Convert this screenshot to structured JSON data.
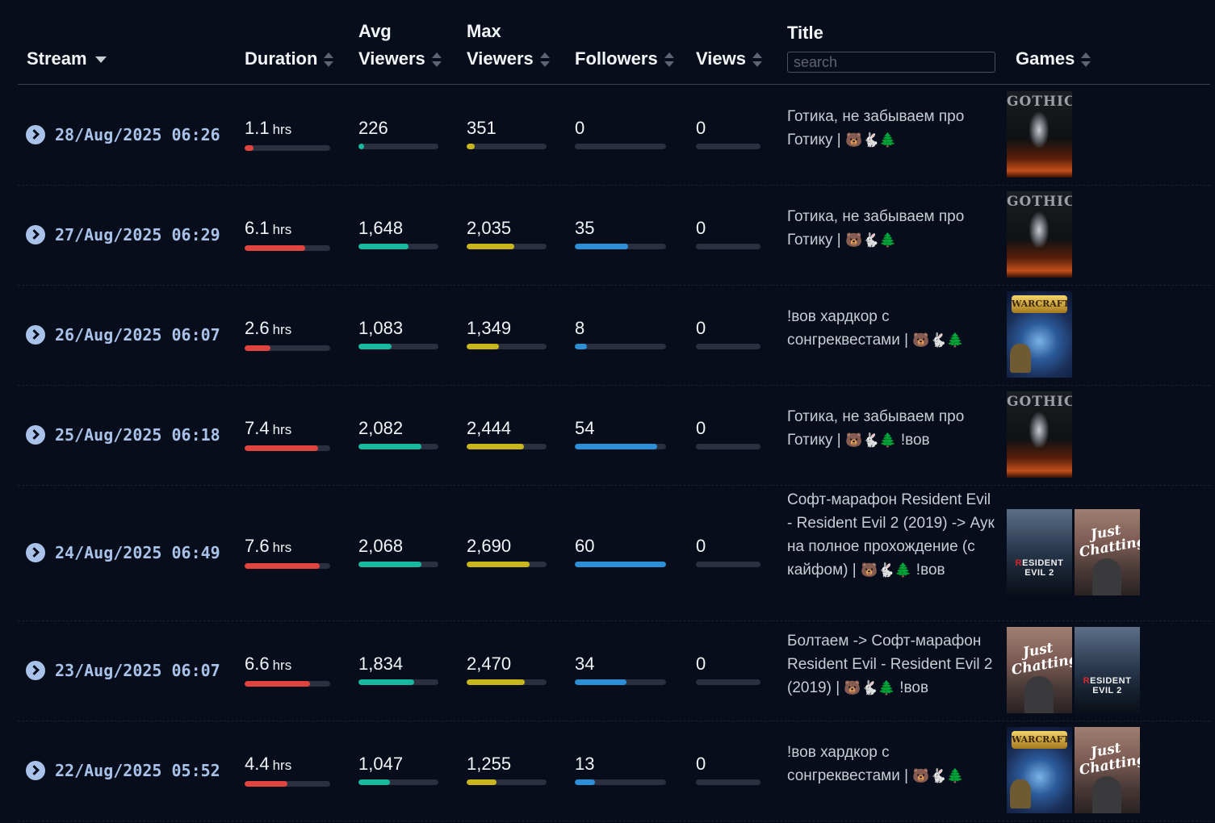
{
  "header": {
    "stream": "Stream",
    "duration": "Duration",
    "avg_viewers_1": "Avg",
    "avg_viewers_2": "Viewers",
    "max_viewers_1": "Max",
    "max_viewers_2": "Viewers",
    "followers": "Followers",
    "views": "Views",
    "title": "Title",
    "search_placeholder": "search",
    "games": "Games"
  },
  "unit_hrs": "hrs",
  "colors": {
    "duration": "#e0443e",
    "avg_viewers": "#19b9a0",
    "max_viewers": "#c8b61c",
    "followers": "#2d8fd6",
    "views": "#2d8fd6"
  },
  "rows": [
    {
      "stream": "28/Aug/2025 06:26",
      "duration": "1.1",
      "duration_frac": 0.1,
      "avg_viewers": "226",
      "avg_frac": 0.07,
      "max_viewers": "351",
      "max_frac": 0.1,
      "followers": "0",
      "followers_frac": 0,
      "views": "0",
      "views_frac": 0,
      "title_text": "Готика, не забываем про Готику |",
      "title_emoji": "🐻🐇🌲",
      "title_suffix": "",
      "games": [
        "gothic"
      ]
    },
    {
      "stream": "27/Aug/2025 06:29",
      "duration": "6.1",
      "duration_frac": 0.71,
      "avg_viewers": "1,648",
      "avg_frac": 0.63,
      "max_viewers": "2,035",
      "max_frac": 0.6,
      "followers": "35",
      "followers_frac": 0.58,
      "views": "0",
      "views_frac": 0,
      "title_text": "Готика, не забываем про Готику |",
      "title_emoji": "🐻🐇🌲",
      "title_suffix": "",
      "games": [
        "gothic"
      ]
    },
    {
      "stream": "26/Aug/2025 06:07",
      "duration": "2.6",
      "duration_frac": 0.3,
      "avg_viewers": "1,083",
      "avg_frac": 0.41,
      "max_viewers": "1,349",
      "max_frac": 0.4,
      "followers": "8",
      "followers_frac": 0.13,
      "views": "0",
      "views_frac": 0,
      "title_text": "!вов хардкор с сонгреквестами |",
      "title_emoji": "🐻🐇🌲",
      "title_suffix": "",
      "games": [
        "wow"
      ]
    },
    {
      "stream": "25/Aug/2025 06:18",
      "duration": "7.4",
      "duration_frac": 0.86,
      "avg_viewers": "2,082",
      "avg_frac": 0.79,
      "max_viewers": "2,444",
      "max_frac": 0.72,
      "followers": "54",
      "followers_frac": 0.9,
      "views": "0",
      "views_frac": 0,
      "title_text": "Готика, не забываем про Готику |",
      "title_emoji": "🐻🐇🌲",
      "title_suffix": "!вов",
      "games": [
        "gothic"
      ]
    },
    {
      "stream": "24/Aug/2025 06:49",
      "duration": "7.6",
      "duration_frac": 0.88,
      "avg_viewers": "2,068",
      "avg_frac": 0.79,
      "max_viewers": "2,690",
      "max_frac": 0.79,
      "followers": "60",
      "followers_frac": 1.0,
      "views": "0",
      "views_frac": 0,
      "title_text": "Софт-марафон Resident Evil - Resident Evil 2 (2019) -> Аук на полное прохождение (с кайфом) |",
      "title_emoji": "🐻🐇🌲",
      "title_suffix": "!вов",
      "games": [
        "re2",
        "just-chatting"
      ]
    },
    {
      "stream": "23/Aug/2025 06:07",
      "duration": "6.6",
      "duration_frac": 0.76,
      "avg_viewers": "1,834",
      "avg_frac": 0.7,
      "max_viewers": "2,470",
      "max_frac": 0.73,
      "followers": "34",
      "followers_frac": 0.57,
      "views": "0",
      "views_frac": 0,
      "title_text": "Болтаем -> Софт-марафон Resident Evil - Resident Evil 2 (2019) |",
      "title_emoji": "🐻🐇🌲",
      "title_suffix": "!вов",
      "games": [
        "just-chatting",
        "re2"
      ]
    },
    {
      "stream": "22/Aug/2025 05:52",
      "duration": "4.4",
      "duration_frac": 0.5,
      "avg_viewers": "1,047",
      "avg_frac": 0.39,
      "max_viewers": "1,255",
      "max_frac": 0.37,
      "followers": "13",
      "followers_frac": 0.22,
      "views": "0",
      "views_frac": 0,
      "title_text": "!вов хардкор с сонгреквестами |",
      "title_emoji": "🐻🐇🌲",
      "title_suffix": "",
      "games": [
        "wow",
        "just-chatting"
      ]
    }
  ],
  "game_covers": {
    "gothic": {
      "logo": "GOTHIC",
      "name": "gothic-cover"
    },
    "wow": {
      "logo": "WARCRAFT",
      "name": "wow-cover"
    },
    "re2": {
      "logo_a": "R",
      "logo_b": "ESIDENT EVIL 2",
      "name": "re2-cover"
    },
    "just-chatting": {
      "logo": "Just Chatting",
      "name": "just-chatting-cover"
    }
  }
}
